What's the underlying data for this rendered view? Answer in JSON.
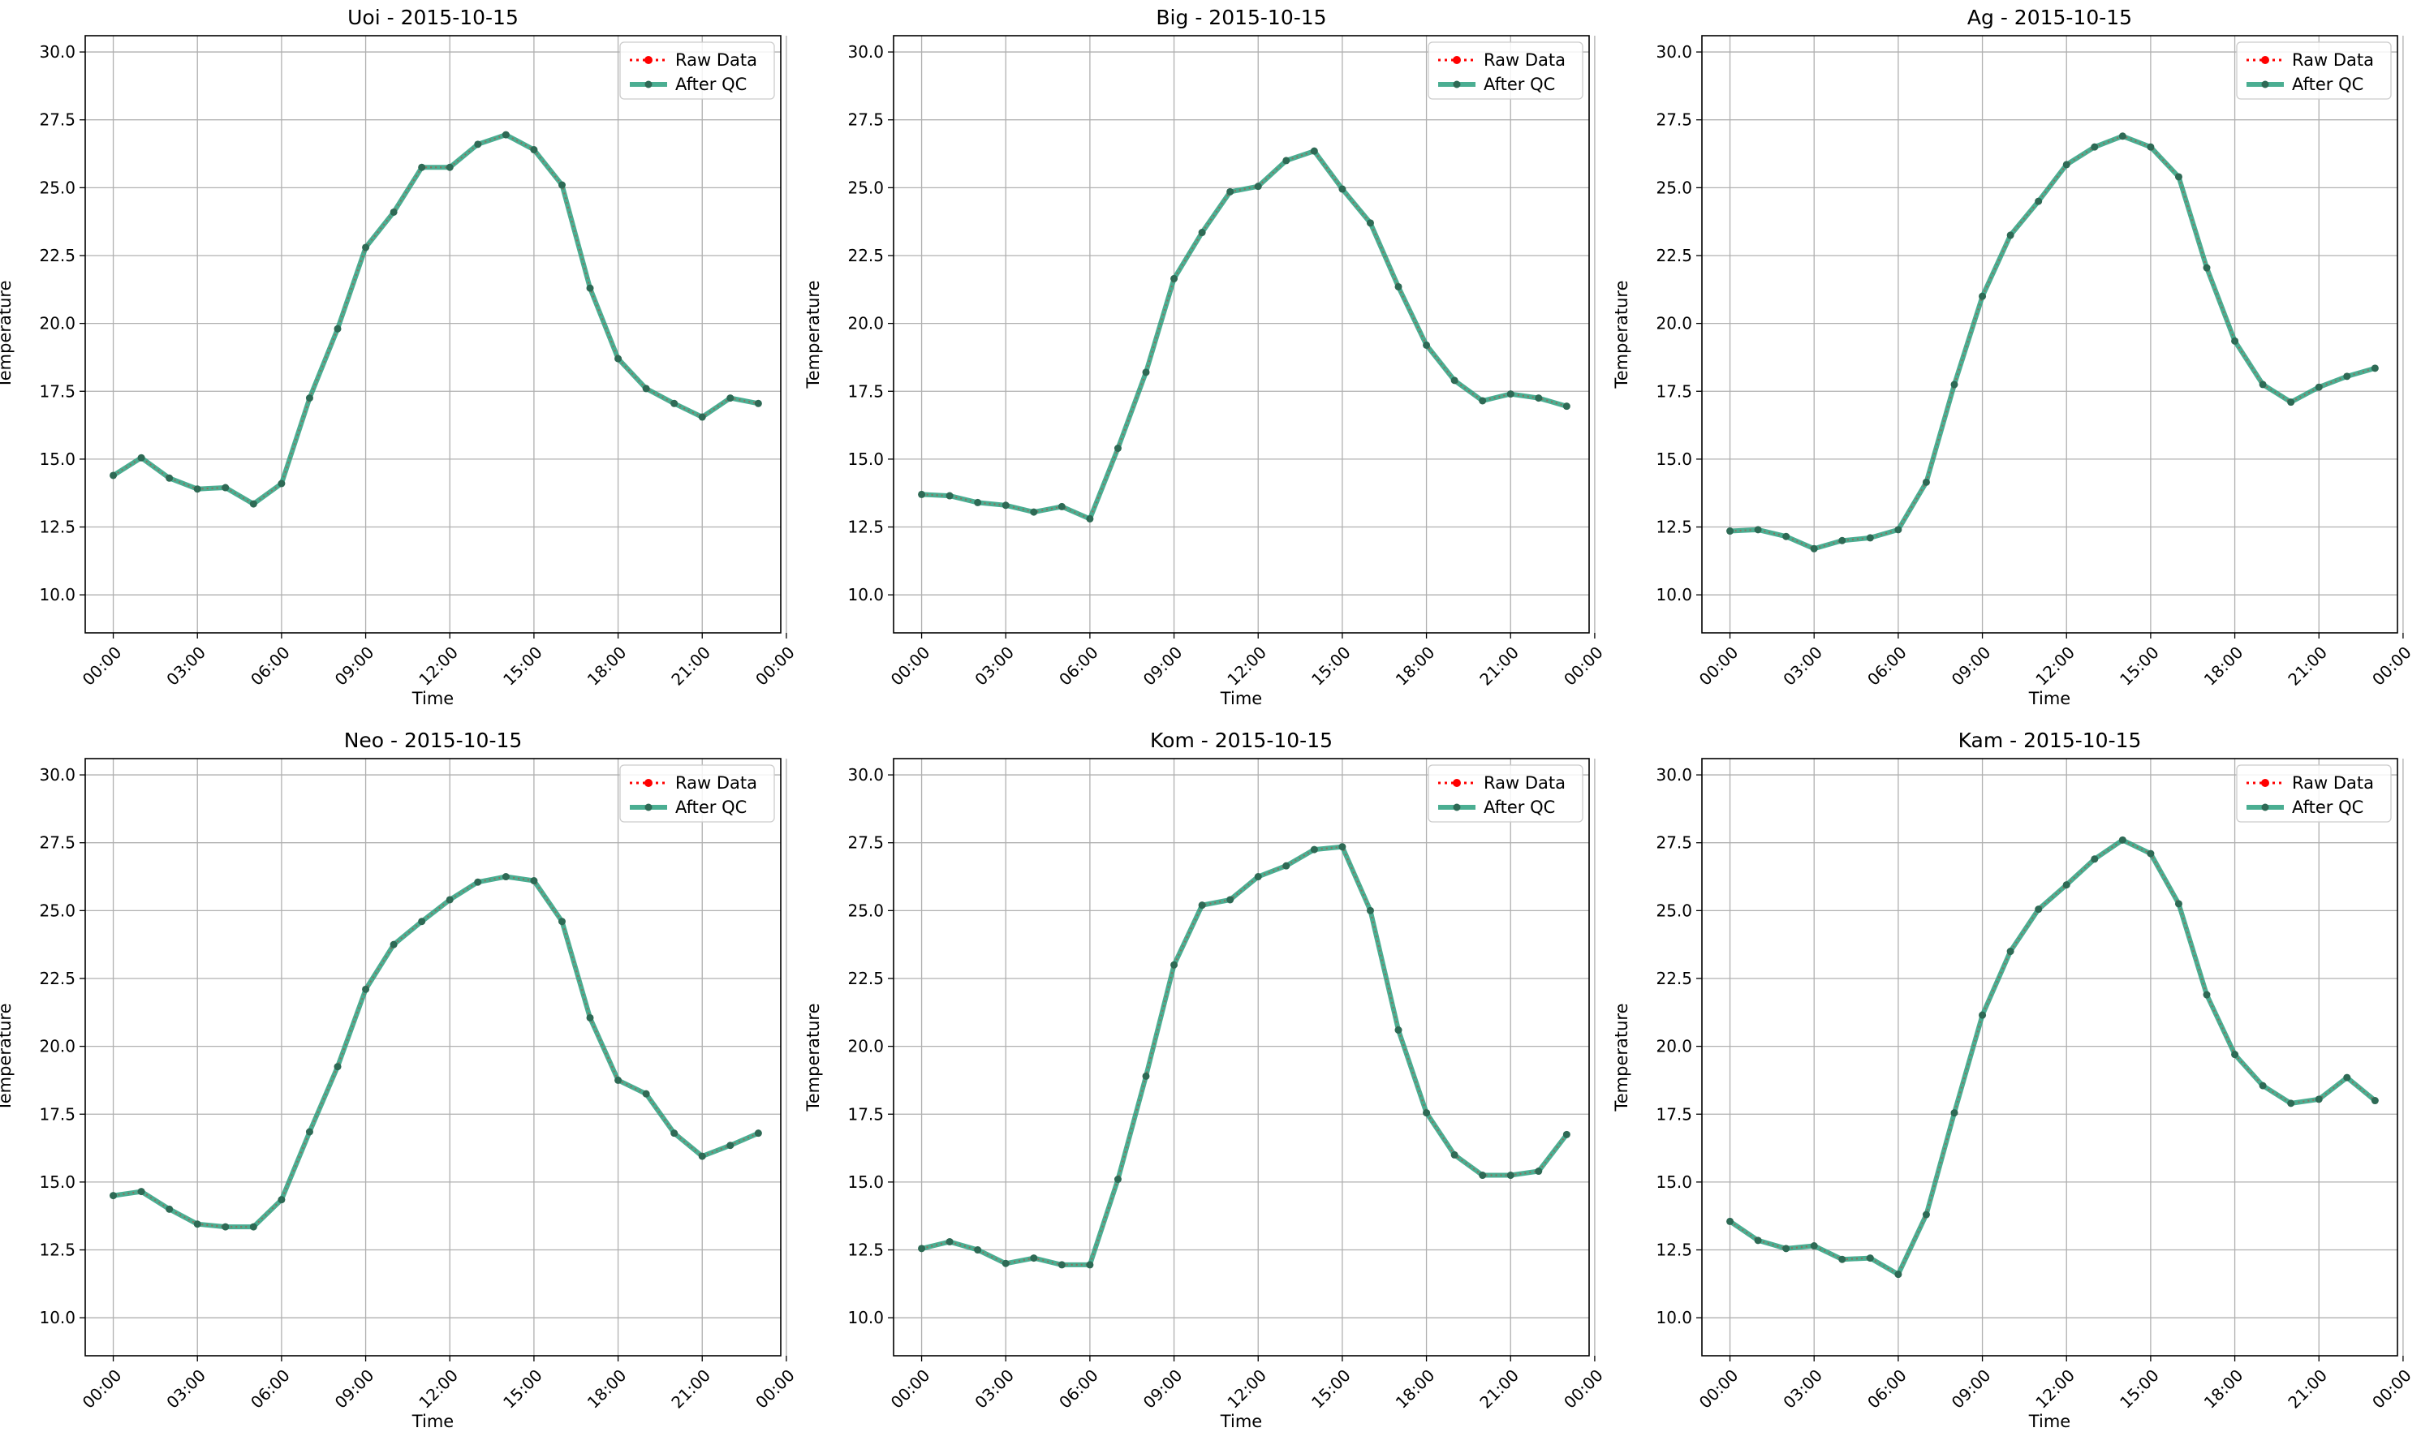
{
  "figure": {
    "xlabel": "Time",
    "ylabel": "Temperature",
    "legend": {
      "raw": "Raw Data",
      "qc": "After QC",
      "position": "top-right"
    },
    "colors": {
      "raw": "#ff0000",
      "qc": "#2ca07f",
      "marker": "#2e6a55",
      "grid": "#b0b0b0"
    },
    "yticks": [
      "10.0",
      "12.5",
      "15.0",
      "17.5",
      "20.0",
      "22.5",
      "25.0",
      "27.5",
      "30.0"
    ],
    "xticks": [
      "00:00",
      "03:00",
      "06:00",
      "09:00",
      "12:00",
      "15:00",
      "18:00",
      "21:00",
      "00:00"
    ]
  },
  "chart_data": [
    {
      "type": "line",
      "title": "Uoi - 2015-10-15",
      "xlabel": "Time",
      "ylabel": "Temperature",
      "x_hours": [
        0,
        1,
        2,
        3,
        4,
        5,
        6,
        7,
        8,
        9,
        10,
        11,
        12,
        13,
        14,
        15,
        16,
        17,
        18,
        19,
        20,
        21,
        22,
        23
      ],
      "ylim": [
        8.6,
        30.6
      ],
      "grid": true,
      "series": [
        {
          "name": "Raw Data",
          "values": [
            14.4,
            15.05,
            14.3,
            13.9,
            13.95,
            13.35,
            14.1,
            17.25,
            19.8,
            22.8,
            24.1,
            25.75,
            25.75,
            26.6,
            26.95,
            26.4,
            25.1,
            21.3,
            18.7,
            17.6,
            17.05,
            16.55,
            17.25,
            17.05
          ]
        },
        {
          "name": "After QC",
          "values": [
            14.4,
            15.05,
            14.3,
            13.9,
            13.95,
            13.35,
            14.1,
            17.25,
            19.8,
            22.8,
            24.1,
            25.75,
            25.75,
            26.6,
            26.95,
            26.4,
            25.1,
            21.3,
            18.7,
            17.6,
            17.05,
            16.55,
            17.25,
            17.05
          ]
        }
      ]
    },
    {
      "type": "line",
      "title": "Big - 2015-10-15",
      "xlabel": "Time",
      "ylabel": "Temperature",
      "x_hours": [
        0,
        1,
        2,
        3,
        4,
        5,
        6,
        7,
        8,
        9,
        10,
        11,
        12,
        13,
        14,
        15,
        16,
        17,
        18,
        19,
        20,
        21,
        22,
        23
      ],
      "ylim": [
        8.6,
        30.6
      ],
      "grid": true,
      "series": [
        {
          "name": "Raw Data",
          "values": [
            13.7,
            13.65,
            13.4,
            13.3,
            13.05,
            13.25,
            12.8,
            15.4,
            18.2,
            21.65,
            23.35,
            24.85,
            25.05,
            26.0,
            26.35,
            24.95,
            23.7,
            21.35,
            19.2,
            17.9,
            17.15,
            17.4,
            17.25,
            16.95
          ]
        },
        {
          "name": "After QC",
          "values": [
            13.7,
            13.65,
            13.4,
            13.3,
            13.05,
            13.25,
            12.8,
            15.4,
            18.2,
            21.65,
            23.35,
            24.85,
            25.05,
            26.0,
            26.35,
            24.95,
            23.7,
            21.35,
            19.2,
            17.9,
            17.15,
            17.4,
            17.25,
            16.95
          ]
        }
      ]
    },
    {
      "type": "line",
      "title": "Ag - 2015-10-15",
      "xlabel": "Time",
      "ylabel": "Temperature",
      "x_hours": [
        0,
        1,
        2,
        3,
        4,
        5,
        6,
        7,
        8,
        9,
        10,
        11,
        12,
        13,
        14,
        15,
        16,
        17,
        18,
        19,
        20,
        21,
        22,
        23
      ],
      "ylim": [
        8.6,
        30.6
      ],
      "grid": true,
      "series": [
        {
          "name": "Raw Data",
          "values": [
            12.35,
            12.4,
            12.15,
            11.7,
            12.0,
            12.1,
            12.4,
            14.15,
            17.75,
            21.0,
            23.25,
            24.5,
            25.85,
            26.5,
            26.9,
            26.5,
            25.4,
            22.05,
            19.35,
            17.75,
            17.1,
            17.65,
            18.05,
            18.35
          ]
        },
        {
          "name": "After QC",
          "values": [
            12.35,
            12.4,
            12.15,
            11.7,
            12.0,
            12.1,
            12.4,
            14.15,
            17.75,
            21.0,
            23.25,
            24.5,
            25.85,
            26.5,
            26.9,
            26.5,
            25.4,
            22.05,
            19.35,
            17.75,
            17.1,
            17.65,
            18.05,
            18.35
          ]
        }
      ]
    },
    {
      "type": "line",
      "title": "Neo - 2015-10-15",
      "xlabel": "Time",
      "ylabel": "Temperature",
      "x_hours": [
        0,
        1,
        2,
        3,
        4,
        5,
        6,
        7,
        8,
        9,
        10,
        11,
        12,
        13,
        14,
        15,
        16,
        17,
        18,
        19,
        20,
        21,
        22,
        23
      ],
      "ylim": [
        8.6,
        30.6
      ],
      "grid": true,
      "series": [
        {
          "name": "Raw Data",
          "values": [
            14.5,
            14.65,
            14.0,
            13.45,
            13.35,
            13.35,
            14.35,
            16.85,
            19.25,
            22.1,
            23.75,
            24.6,
            25.4,
            26.05,
            26.25,
            26.1,
            24.6,
            21.05,
            18.75,
            18.25,
            16.8,
            15.95,
            16.35,
            16.8
          ]
        },
        {
          "name": "After QC",
          "values": [
            14.5,
            14.65,
            14.0,
            13.45,
            13.35,
            13.35,
            14.35,
            16.85,
            19.25,
            22.1,
            23.75,
            24.6,
            25.4,
            26.05,
            26.25,
            26.1,
            24.6,
            21.05,
            18.75,
            18.25,
            16.8,
            15.95,
            16.35,
            16.8
          ]
        }
      ]
    },
    {
      "type": "line",
      "title": "Kom - 2015-10-15",
      "xlabel": "Time",
      "ylabel": "Temperature",
      "x_hours": [
        0,
        1,
        2,
        3,
        4,
        5,
        6,
        7,
        8,
        9,
        10,
        11,
        12,
        13,
        14,
        15,
        16,
        17,
        18,
        19,
        20,
        21,
        22,
        23
      ],
      "ylim": [
        8.6,
        30.6
      ],
      "grid": true,
      "series": [
        {
          "name": "Raw Data",
          "values": [
            12.55,
            12.8,
            12.5,
            12.0,
            12.2,
            11.95,
            11.95,
            15.1,
            18.9,
            23.0,
            25.2,
            25.4,
            26.25,
            26.65,
            27.25,
            27.35,
            25.0,
            20.6,
            17.55,
            16.0,
            15.25,
            15.25,
            15.4,
            16.75
          ]
        },
        {
          "name": "After QC",
          "values": [
            12.55,
            12.8,
            12.5,
            12.0,
            12.2,
            11.95,
            11.95,
            15.1,
            18.9,
            23.0,
            25.2,
            25.4,
            26.25,
            26.65,
            27.25,
            27.35,
            25.0,
            20.6,
            17.55,
            16.0,
            15.25,
            15.25,
            15.4,
            16.75
          ]
        }
      ]
    },
    {
      "type": "line",
      "title": "Kam - 2015-10-15",
      "xlabel": "Time",
      "ylabel": "Temperature",
      "x_hours": [
        0,
        1,
        2,
        3,
        4,
        5,
        6,
        7,
        8,
        9,
        10,
        11,
        12,
        13,
        14,
        15,
        16,
        17,
        18,
        19,
        20,
        21,
        22,
        23
      ],
      "ylim": [
        8.6,
        30.6
      ],
      "grid": true,
      "series": [
        {
          "name": "Raw Data",
          "values": [
            13.55,
            12.85,
            12.55,
            12.65,
            12.15,
            12.2,
            11.6,
            13.8,
            17.55,
            21.15,
            23.5,
            25.05,
            25.95,
            26.9,
            27.6,
            27.1,
            25.25,
            21.9,
            19.7,
            18.55,
            17.9,
            18.05,
            18.85,
            18.0
          ]
        },
        {
          "name": "After QC",
          "values": [
            13.55,
            12.85,
            12.55,
            12.65,
            12.15,
            12.2,
            11.6,
            13.8,
            17.55,
            21.15,
            23.5,
            25.05,
            25.95,
            26.9,
            27.6,
            27.1,
            25.25,
            21.9,
            19.7,
            18.55,
            17.9,
            18.05,
            18.85,
            18.0
          ]
        }
      ]
    }
  ]
}
